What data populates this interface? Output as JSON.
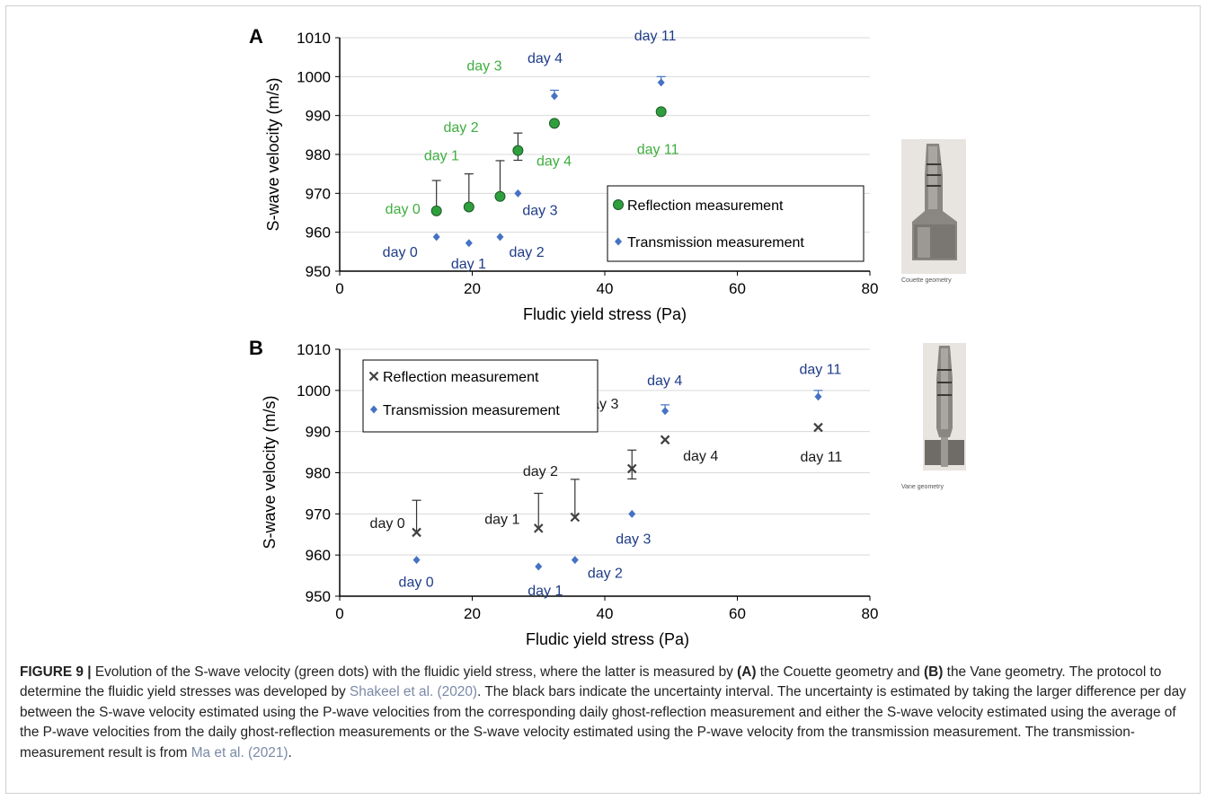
{
  "colors": {
    "reflection_green": "#2f9e3f",
    "reflection_label_green": "#3fae3f",
    "transmission_blue": "#4472c4",
    "transmission_label_blue": "#1f3c88",
    "cross_marker": "#404040",
    "grid": "#d9d9d9"
  },
  "chart_data": [
    {
      "type": "scatter",
      "panel_label": "A",
      "xlabel": "Fludic yield stress (Pa)",
      "ylabel": "S-wave velocity (m/s)",
      "xlim": [
        0,
        80
      ],
      "ylim": [
        950,
        1010
      ],
      "xticks": [
        0,
        20,
        40,
        60,
        80
      ],
      "yticks": [
        950,
        960,
        970,
        980,
        990,
        1000,
        1010
      ],
      "grid": "horizontal",
      "legend_placement": "lower-right",
      "series": [
        {
          "name": "Reflection measurement",
          "marker": "circle",
          "color": "#2f9e3f",
          "points": [
            {
              "x": 14.6,
              "y": 965.5,
              "err_low": 0,
              "err_high": 7.8,
              "label": "day 0"
            },
            {
              "x": 19.5,
              "y": 966.5,
              "err_low": 0,
              "err_high": 8.5,
              "label": "day 1"
            },
            {
              "x": 24.2,
              "y": 969.2,
              "err_low": 0,
              "err_high": 9.2,
              "label": "day 2"
            },
            {
              "x": 26.9,
              "y": 981.0,
              "err_low": 2.5,
              "err_high": 4.5,
              "label": "day 3"
            },
            {
              "x": 32.4,
              "y": 988.0,
              "err_low": 0,
              "err_high": 0,
              "label": "day 4"
            },
            {
              "x": 48.5,
              "y": 991.0,
              "err_low": 0,
              "err_high": 0,
              "label": "day 11"
            }
          ]
        },
        {
          "name": "Transmission measurement",
          "marker": "diamond",
          "color": "#4472c4",
          "points": [
            {
              "x": 14.6,
              "y": 958.8,
              "label": "day 0"
            },
            {
              "x": 19.5,
              "y": 957.2,
              "label": "day 1"
            },
            {
              "x": 24.2,
              "y": 958.8,
              "label": "day 2"
            },
            {
              "x": 26.9,
              "y": 970.0,
              "label": "day 3"
            },
            {
              "x": 32.4,
              "y": 995.0,
              "err_low": 0,
              "err_high": 1.5,
              "label": "day 4"
            },
            {
              "x": 48.5,
              "y": 998.5,
              "err_low": 0,
              "err_high": 1.5,
              "label": "day 11"
            }
          ]
        }
      ]
    },
    {
      "type": "scatter",
      "panel_label": "B",
      "xlabel": "Fludic yield stress (Pa)",
      "ylabel": "S-wave velocity (m/s)",
      "xlim": [
        0,
        80
      ],
      "ylim": [
        950,
        1010
      ],
      "xticks": [
        0,
        20,
        40,
        60,
        80
      ],
      "yticks": [
        950,
        960,
        970,
        980,
        990,
        1000,
        1010
      ],
      "grid": "horizontal",
      "legend_placement": "top-left",
      "series": [
        {
          "name": "Reflection measurement",
          "marker": "cross",
          "color": "#404040",
          "points": [
            {
              "x": 11.6,
              "y": 965.5,
              "err_low": 0,
              "err_high": 7.8,
              "label": "day 0"
            },
            {
              "x": 30.0,
              "y": 966.5,
              "err_low": 0,
              "err_high": 8.5,
              "label": "day 1"
            },
            {
              "x": 35.5,
              "y": 969.2,
              "err_low": 0,
              "err_high": 9.2,
              "label": "day 2"
            },
            {
              "x": 44.1,
              "y": 981.0,
              "err_low": 2.5,
              "err_high": 4.5,
              "label": "day 3"
            },
            {
              "x": 49.1,
              "y": 988.0,
              "err_low": 0,
              "err_high": 0,
              "label": "day 4"
            },
            {
              "x": 72.2,
              "y": 991.0,
              "err_low": 0,
              "err_high": 0,
              "label": "day 11"
            }
          ]
        },
        {
          "name": "Transmission measurement",
          "marker": "diamond",
          "color": "#4472c4",
          "points": [
            {
              "x": 11.6,
              "y": 958.8,
              "label": "day 0"
            },
            {
              "x": 30.0,
              "y": 957.2,
              "label": "day 1"
            },
            {
              "x": 35.5,
              "y": 958.8,
              "label": "day 2"
            },
            {
              "x": 44.1,
              "y": 970.0,
              "label": "day 3"
            },
            {
              "x": 49.1,
              "y": 995.0,
              "err_low": 0,
              "err_high": 1.5,
              "label": "day 4"
            },
            {
              "x": 72.2,
              "y": 998.5,
              "err_low": 0,
              "err_high": 1.5,
              "label": "day 11"
            }
          ]
        }
      ]
    }
  ],
  "photos": [
    {
      "caption": "Couette geometry",
      "icon": "couette-geometry-photo"
    },
    {
      "caption": "Vane geometry",
      "icon": "vane-geometry-photo"
    }
  ],
  "caption": {
    "label": "FIGURE 9 |",
    "text_1": " Evolution of the S-wave velocity (green dots) with the fluidic yield stress, where the latter is measured by ",
    "bold_a": "(A)",
    "text_2": " the Couette geometry and ",
    "bold_b": "(B)",
    "text_3": " the Vane geometry. The protocol to determine the fluidic yield stresses was developed by ",
    "ref_1": "Shakeel et al. (2020)",
    "text_4": ". The black bars indicate the uncertainty interval. The uncertainty is estimated by taking the larger difference per day between the S-wave velocity estimated using the P-wave velocities from the corresponding daily ghost-reflection measurement and either the S-wave velocity estimated using the average of the P-wave velocities from the daily ghost-reflection measurements or the S-wave velocity estimated using the P-wave velocity from the transmission measurement. The transmission-measurement result is from ",
    "ref_2": "Ma et al. (2021)",
    "text_5": "."
  }
}
